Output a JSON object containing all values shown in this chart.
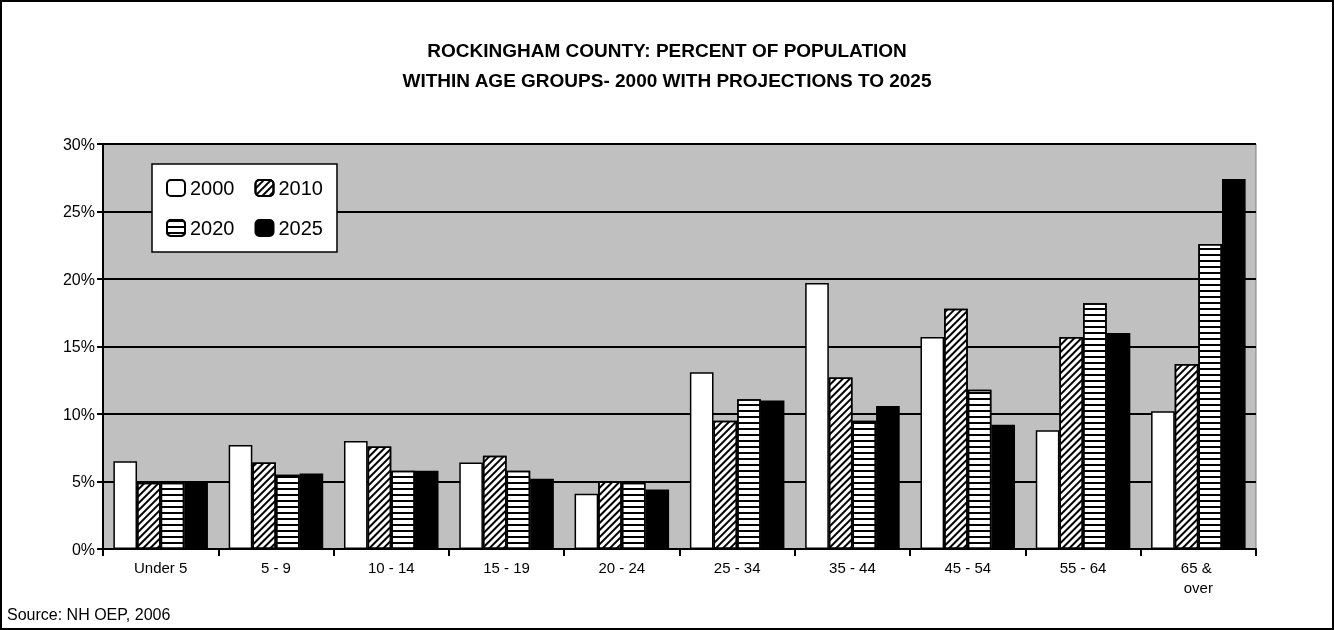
{
  "chart_data": {
    "type": "bar",
    "title": "ROCKINGHAM COUNTY: PERCENT OF POPULATION\nWITHIN AGE GROUPS- 2000 WITH PROJECTIONS TO 2025",
    "categories": [
      "Under 5",
      "5 - 9",
      "10 - 14",
      "15 - 19",
      "20 - 24",
      "25 - 34",
      "35 - 44",
      "45 - 54",
      "55 - 64",
      "65 & over"
    ],
    "series": [
      {
        "name": "2000",
        "color": "#ffffff",
        "values": [
          6.5,
          7.7,
          8.0,
          6.4,
          4.1,
          13.1,
          19.7,
          15.7,
          8.8,
          10.2
        ]
      },
      {
        "name": "2010",
        "color": "#ffffff",
        "values": [
          4.9,
          6.4,
          7.6,
          6.9,
          5.0,
          9.5,
          12.7,
          17.8,
          15.7,
          13.7
        ]
      },
      {
        "name": "2020",
        "color": "#ffffff",
        "values": [
          4.9,
          5.5,
          5.8,
          5.8,
          4.9,
          11.1,
          9.5,
          11.8,
          18.2,
          22.6
        ]
      },
      {
        "name": "2025",
        "color": "#000000",
        "values": [
          4.9,
          5.6,
          5.8,
          5.2,
          4.4,
          11.0,
          10.6,
          9.2,
          16.0,
          27.4
        ]
      }
    ],
    "ylim": [
      0,
      30
    ],
    "yticks": [
      {
        "value": 0,
        "label": "0%"
      },
      {
        "value": 5,
        "label": "5%"
      },
      {
        "value": 10,
        "label": "10%"
      },
      {
        "value": 15,
        "label": "15%"
      },
      {
        "value": 20,
        "label": "20%"
      },
      {
        "value": 25,
        "label": "25%"
      },
      {
        "value": 30,
        "label": "30%"
      }
    ],
    "grid": "y",
    "legend": "top left",
    "annotations": [
      "Source: NH OEP, 2006"
    ]
  }
}
